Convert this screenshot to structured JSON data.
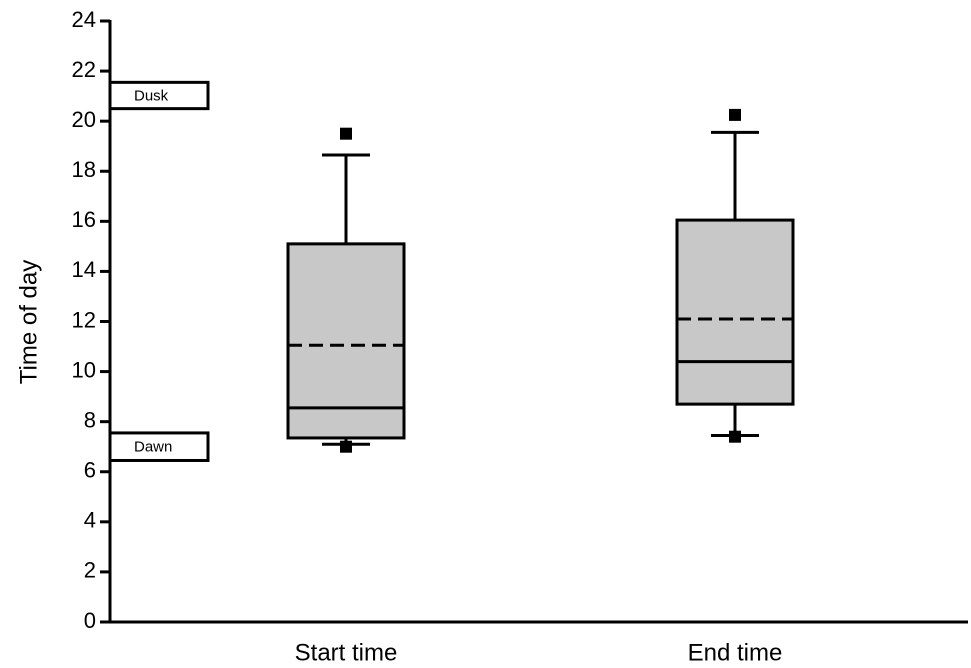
{
  "chart_data": {
    "type": "box",
    "y_label": "Time of day",
    "categories": [
      "Start time",
      "End time"
    ],
    "boxes": [
      {
        "whisker_low": 7.1,
        "q1": 7.35,
        "median": 8.55,
        "mean": 11.05,
        "q3": 15.1,
        "whisker_high": 18.65,
        "outliers": [
          19.5,
          7.0
        ]
      },
      {
        "whisker_low": 7.45,
        "q1": 8.7,
        "median": 10.4,
        "mean": 12.1,
        "q3": 16.05,
        "whisker_high": 19.55,
        "outliers": [
          20.25,
          7.4
        ]
      }
    ],
    "box_color": "#c8c8c8",
    "annotations": [
      {
        "label": "Dusk",
        "range": [
          20.5,
          21.55
        ]
      },
      {
        "label": "Dawn",
        "range": [
          6.45,
          7.55
        ]
      }
    ],
    "ylim": [
      0,
      24
    ],
    "yticks": [
      0,
      2,
      4,
      6,
      8,
      10,
      12,
      14,
      16,
      18,
      20,
      22,
      24
    ]
  }
}
